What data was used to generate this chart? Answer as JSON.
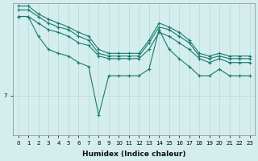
{
  "xlabel": "Humidex (Indice chaleur)",
  "background_color": "#d4eeed",
  "grid_color": "#b8d8d5",
  "line_color": "#1a7a6e",
  "ytick_value": 7,
  "ylim": [
    4,
    14
  ],
  "xlim": [
    -0.5,
    23.5
  ],
  "series": [
    [
      13.0,
      13.0,
      12.5,
      12.0,
      11.8,
      11.5,
      11.0,
      10.8,
      10.0,
      9.8,
      9.8,
      9.8,
      9.8,
      10.5,
      11.8,
      11.5,
      11.0,
      10.5,
      9.8,
      9.5,
      9.8,
      9.5,
      9.5,
      9.5
    ],
    [
      13.5,
      13.5,
      13.0,
      12.5,
      12.2,
      12.0,
      11.5,
      11.2,
      10.2,
      10.0,
      10.0,
      10.0,
      10.0,
      11.0,
      12.2,
      12.0,
      11.5,
      11.0,
      10.0,
      9.8,
      10.0,
      9.8,
      9.8,
      9.8
    ],
    [
      13.8,
      13.8,
      13.2,
      12.8,
      12.5,
      12.2,
      11.8,
      11.5,
      10.5,
      10.2,
      10.2,
      10.2,
      10.2,
      11.2,
      12.5,
      12.2,
      11.8,
      11.2,
      10.2,
      10.0,
      10.2,
      10.0,
      10.0,
      10.0
    ],
    [
      13.0,
      13.0,
      11.5,
      10.5,
      10.2,
      10.0,
      9.5,
      9.2,
      5.5,
      8.5,
      8.5,
      8.5,
      8.5,
      9.0,
      12.0,
      10.5,
      9.8,
      9.2,
      8.5,
      8.5,
      9.0,
      8.5,
      8.5,
      8.5
    ]
  ]
}
